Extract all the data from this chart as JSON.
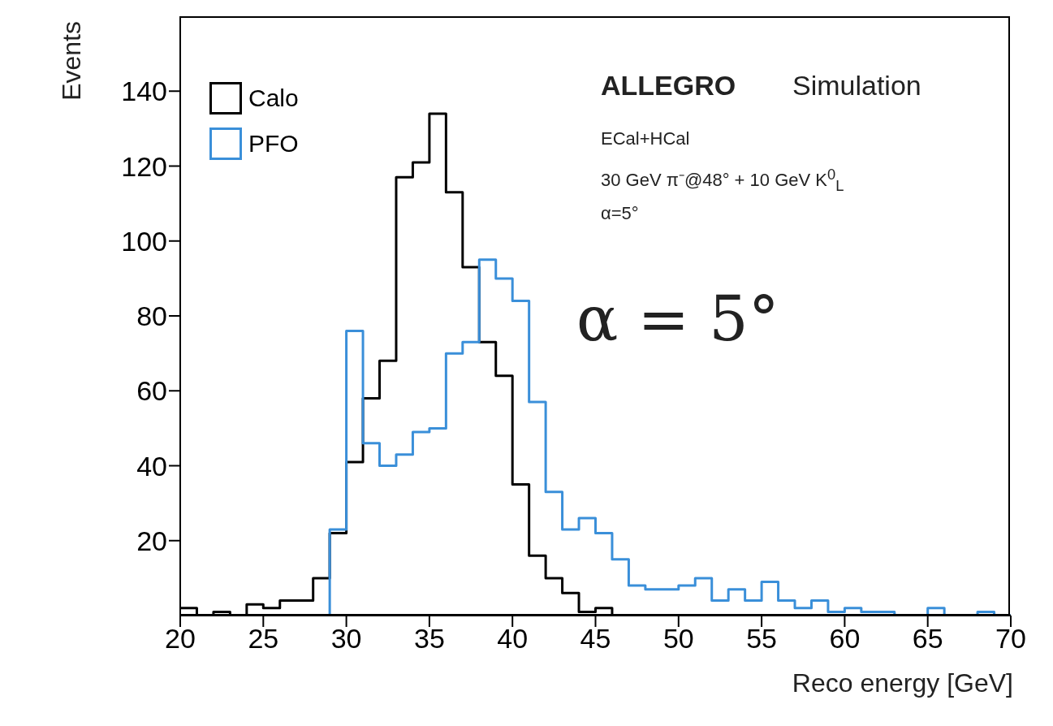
{
  "chart_data": {
    "type": "histogram",
    "xlabel": "Reco energy [GeV]",
    "ylabel": "Events",
    "bins": [
      20,
      21,
      22,
      23,
      24,
      25,
      26,
      27,
      28,
      29,
      30,
      31,
      32,
      33,
      34,
      35,
      36,
      37,
      38,
      39,
      40,
      41,
      42,
      43,
      44,
      45,
      46,
      47,
      48,
      49,
      50,
      51,
      52,
      53,
      54,
      55,
      56,
      57,
      58,
      59,
      60,
      61,
      62,
      63,
      64,
      65,
      66,
      67,
      68,
      69,
      70
    ],
    "series": [
      {
        "name": "Calo",
        "color": "#000000",
        "values": [
          2,
          0,
          1,
          0,
          3,
          2,
          4,
          4,
          10,
          22,
          41,
          58,
          68,
          117,
          121,
          134,
          113,
          93,
          73,
          64,
          35,
          16,
          10,
          6,
          1,
          2,
          0,
          0,
          0,
          0,
          0,
          0,
          0,
          0,
          0,
          0,
          0,
          0,
          0,
          0,
          0,
          0,
          0,
          0,
          0,
          0,
          0,
          0,
          0,
          0
        ]
      },
      {
        "name": "PFO",
        "color": "#3a8fd9",
        "values": [
          0,
          0,
          0,
          0,
          0,
          0,
          0,
          0,
          0,
          23,
          76,
          46,
          40,
          43,
          49,
          50,
          70,
          73,
          95,
          90,
          84,
          57,
          33,
          23,
          26,
          22,
          15,
          8,
          7,
          7,
          8,
          10,
          4,
          7,
          4,
          9,
          4,
          2,
          4,
          1,
          2,
          1,
          1,
          0,
          0,
          2,
          0,
          0,
          1,
          0
        ]
      }
    ],
    "xlim": [
      20,
      70
    ],
    "xticks": [
      20,
      25,
      30,
      35,
      40,
      45,
      50,
      55,
      60,
      65,
      70
    ],
    "ylim": [
      0,
      160
    ],
    "yticks": [
      20,
      40,
      60,
      80,
      100,
      120,
      140
    ],
    "legend": "top left",
    "annotations": [
      "ALLEGRO",
      "Simulation",
      "ECal+HCal",
      "30 GeV π⁻@48° + 10 GeV K$^{0}$$_{L}$",
      "α=5°",
      "α = 5°"
    ]
  }
}
